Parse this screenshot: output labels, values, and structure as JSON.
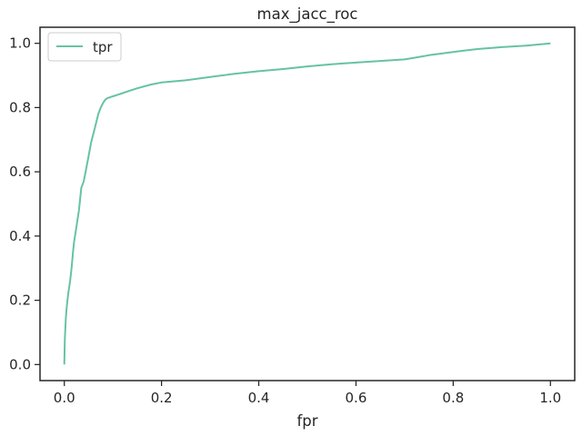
{
  "chart_data": {
    "type": "line",
    "title": "max_jacc_roc",
    "xlabel": "fpr",
    "ylabel": "",
    "xlim": [
      -0.05,
      1.05
    ],
    "ylim": [
      -0.05,
      1.05
    ],
    "xticks": [
      0.0,
      0.2,
      0.4,
      0.6,
      0.8,
      1.0
    ],
    "xtick_labels": [
      "0.0",
      "0.2",
      "0.4",
      "0.6",
      "0.8",
      "1.0"
    ],
    "yticks": [
      0.0,
      0.2,
      0.4,
      0.6,
      0.8,
      1.0
    ],
    "ytick_labels": [
      "0.0",
      "0.2",
      "0.4",
      "0.6",
      "0.8",
      "1.0"
    ],
    "grid": false,
    "legend_position": "upper-left",
    "series": [
      {
        "name": "tpr",
        "color": "#66c2a5",
        "x": [
          0.0,
          0.001,
          0.003,
          0.005,
          0.008,
          0.012,
          0.015,
          0.018,
          0.02,
          0.025,
          0.03,
          0.035,
          0.04,
          0.045,
          0.05,
          0.055,
          0.06,
          0.065,
          0.07,
          0.075,
          0.08,
          0.085,
          0.09,
          0.1,
          0.11,
          0.12,
          0.13,
          0.15,
          0.18,
          0.2,
          0.25,
          0.3,
          0.35,
          0.4,
          0.45,
          0.5,
          0.55,
          0.6,
          0.65,
          0.7,
          0.72,
          0.75,
          0.8,
          0.85,
          0.9,
          0.95,
          1.0
        ],
        "y": [
          0.0,
          0.08,
          0.14,
          0.18,
          0.22,
          0.26,
          0.3,
          0.35,
          0.38,
          0.43,
          0.48,
          0.55,
          0.57,
          0.61,
          0.65,
          0.69,
          0.72,
          0.75,
          0.78,
          0.8,
          0.815,
          0.826,
          0.83,
          0.835,
          0.84,
          0.845,
          0.85,
          0.86,
          0.872,
          0.878,
          0.885,
          0.895,
          0.905,
          0.913,
          0.92,
          0.928,
          0.935,
          0.94,
          0.945,
          0.95,
          0.955,
          0.963,
          0.973,
          0.982,
          0.988,
          0.993,
          1.0
        ]
      }
    ]
  }
}
